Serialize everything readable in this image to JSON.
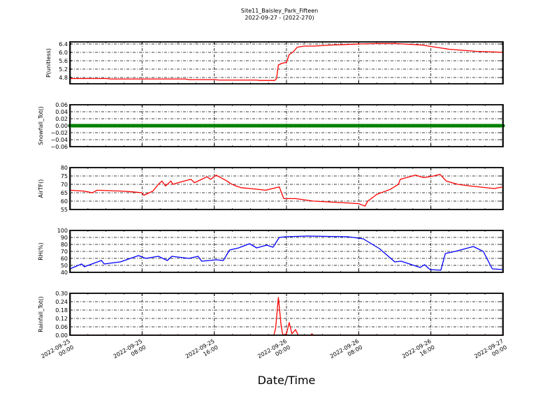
{
  "title": "Site11_Baisley_Park_Fifteen",
  "subtitle": "2022-09-27 - (2022-270)",
  "colors": {
    "red": "#ff0000",
    "green": "#008000",
    "blue": "#0000ff"
  },
  "chart_data": {
    "type": "line",
    "xlabel": "Date/Time",
    "xlim": [
      "2022-09-25 00:00",
      "2022-09-27 00:00"
    ],
    "xticks": [
      [
        "2022-09-25",
        "00:00"
      ],
      [
        "2022-09-25",
        "08:00"
      ],
      [
        "2022-09-25",
        "16:00"
      ],
      [
        "2022-09-26",
        "00:00"
      ],
      [
        "2022-09-26",
        "08:00"
      ],
      [
        "2022-09-26",
        "16:00"
      ],
      [
        "2022-09-27",
        "00:00"
      ]
    ],
    "grid": true,
    "panels": [
      {
        "ylabel": "P(unitless)",
        "ylim": [
          4.5,
          6.5
        ],
        "color": "#ff0000",
        "markers": false,
        "yticks": [
          "4.8",
          "5.2",
          "5.6",
          "6.0",
          "6.4"
        ],
        "points": [
          [
            "2022-09-25 00:00",
            4.75
          ],
          [
            "2022-09-25 04:00",
            4.75
          ],
          [
            "2022-09-25 04:30",
            4.73
          ],
          [
            "2022-09-25 12:48",
            4.73
          ],
          [
            "2022-09-25 13:12",
            4.7
          ],
          [
            "2022-09-25 16:00",
            4.7
          ],
          [
            "2022-09-25 16:30",
            4.68
          ],
          [
            "2022-09-25 20:42",
            4.68
          ],
          [
            "2022-09-25 21:00",
            4.66
          ],
          [
            "2022-09-25 22:42",
            4.66
          ],
          [
            "2022-09-25 22:54",
            4.75
          ],
          [
            "2022-09-25 23:06",
            5.4
          ],
          [
            "2022-09-25 23:30",
            5.48
          ],
          [
            "2022-09-26 00:00",
            5.52
          ],
          [
            "2022-09-26 00:18",
            5.9
          ],
          [
            "2022-09-26 00:42",
            6.0
          ],
          [
            "2022-09-26 01:12",
            6.25
          ],
          [
            "2022-09-26 02:00",
            6.3
          ],
          [
            "2022-09-26 03:00",
            6.3
          ],
          [
            "2022-09-26 05:00",
            6.35
          ],
          [
            "2022-09-26 08:00",
            6.4
          ],
          [
            "2022-09-26 10:00",
            6.42
          ],
          [
            "2022-09-26 12:00",
            6.42
          ],
          [
            "2022-09-26 13:00",
            6.4
          ],
          [
            "2022-09-26 15:00",
            6.35
          ],
          [
            "2022-09-26 16:30",
            6.25
          ],
          [
            "2022-09-26 18:00",
            6.15
          ],
          [
            "2022-09-26 19:30",
            6.1
          ],
          [
            "2022-09-26 21:00",
            6.05
          ],
          [
            "2022-09-26 23:00",
            6.02
          ],
          [
            "2022-09-27 00:00",
            6.0
          ]
        ]
      },
      {
        "ylabel": "Snowfall_Tot()",
        "ylim": [
          -0.06,
          0.06
        ],
        "color": "#008000",
        "markers": true,
        "yticks": [
          "−0.06",
          "−0.04",
          "−0.02",
          "0.00",
          "0.02",
          "0.04",
          "0.06"
        ],
        "points": [
          [
            "2022-09-25 00:00",
            0
          ],
          [
            "2022-09-25 04:00",
            0
          ],
          [
            "2022-09-25 08:00",
            0
          ],
          [
            "2022-09-25 12:00",
            0
          ],
          [
            "2022-09-25 16:00",
            0
          ],
          [
            "2022-09-25 20:00",
            0
          ],
          [
            "2022-09-26 00:00",
            0
          ],
          [
            "2022-09-26 04:00",
            0
          ],
          [
            "2022-09-26 08:00",
            0
          ],
          [
            "2022-09-26 12:00",
            0
          ],
          [
            "2022-09-26 16:00",
            0
          ],
          [
            "2022-09-26 20:00",
            0
          ],
          [
            "2022-09-27 00:00",
            0
          ]
        ]
      },
      {
        "ylabel": "AirTF()",
        "ylim": [
          55,
          80
        ],
        "color": "#ff0000",
        "markers": false,
        "yticks": [
          "55",
          "60",
          "65",
          "70",
          "75",
          "80"
        ],
        "points": [
          [
            "2022-09-25 00:00",
            66.5
          ],
          [
            "2022-09-25 01:30",
            66
          ],
          [
            "2022-09-25 02:30",
            65
          ],
          [
            "2022-09-25 03:00",
            66.5
          ],
          [
            "2022-09-25 05:42",
            66
          ],
          [
            "2022-09-25 07:00",
            65.5
          ],
          [
            "2022-09-25 08:00",
            65
          ],
          [
            "2022-09-25 08:12",
            63.5
          ],
          [
            "2022-09-25 09:12",
            66
          ],
          [
            "2022-09-25 09:48",
            70
          ],
          [
            "2022-09-25 10:12",
            72
          ],
          [
            "2022-09-25 10:36",
            69
          ],
          [
            "2022-09-25 11:12",
            72
          ],
          [
            "2022-09-25 11:24",
            70
          ],
          [
            "2022-09-25 12:00",
            71
          ],
          [
            "2022-09-25 13:24",
            73
          ],
          [
            "2022-09-25 13:48",
            71
          ],
          [
            "2022-09-25 15:12",
            74.5
          ],
          [
            "2022-09-25 15:36",
            73
          ],
          [
            "2022-09-25 16:12",
            75.5
          ],
          [
            "2022-09-25 17:24",
            72
          ],
          [
            "2022-09-25 17:48",
            70.5
          ],
          [
            "2022-09-25 18:24",
            69
          ],
          [
            "2022-09-25 19:00",
            68
          ],
          [
            "2022-09-25 20:00",
            67.5
          ],
          [
            "2022-09-25 21:42",
            66.5
          ],
          [
            "2022-09-25 23:12",
            68.5
          ],
          [
            "2022-09-25 23:42",
            61.5
          ],
          [
            "2022-09-26 01:00",
            61.5
          ],
          [
            "2022-09-26 03:00",
            60
          ],
          [
            "2022-09-26 06:24",
            59
          ],
          [
            "2022-09-26 08:00",
            58.5
          ],
          [
            "2022-09-26 08:42",
            57
          ],
          [
            "2022-09-26 09:00",
            60
          ],
          [
            "2022-09-26 10:00",
            64
          ],
          [
            "2022-09-26 11:30",
            67
          ],
          [
            "2022-09-26 12:24",
            70
          ],
          [
            "2022-09-26 12:36",
            73
          ],
          [
            "2022-09-26 14:18",
            75.5
          ],
          [
            "2022-09-26 15:12",
            74
          ],
          [
            "2022-09-26 16:18",
            75
          ],
          [
            "2022-09-26 17:00",
            76
          ],
          [
            "2022-09-26 17:42",
            72
          ],
          [
            "2022-09-26 19:00",
            70
          ],
          [
            "2022-09-26 20:24",
            69
          ],
          [
            "2022-09-26 23:00",
            67.5
          ],
          [
            "2022-09-27 00:00",
            68.5
          ]
        ]
      },
      {
        "ylabel": "RH(%)",
        "ylim": [
          40,
          100
        ],
        "color": "#0000ff",
        "markers": false,
        "yticks": [
          "40",
          "50",
          "60",
          "70",
          "80",
          "90",
          "100"
        ],
        "points": [
          [
            "2022-09-25 00:00",
            45
          ],
          [
            "2022-09-25 01:18",
            52
          ],
          [
            "2022-09-25 01:36",
            48
          ],
          [
            "2022-09-25 03:30",
            57
          ],
          [
            "2022-09-25 03:48",
            52
          ],
          [
            "2022-09-25 05:36",
            55
          ],
          [
            "2022-09-25 07:36",
            64
          ],
          [
            "2022-09-25 08:24",
            60
          ],
          [
            "2022-09-25 09:48",
            63
          ],
          [
            "2022-09-25 10:48",
            57
          ],
          [
            "2022-09-25 11:18",
            63
          ],
          [
            "2022-09-25 13:12",
            60
          ],
          [
            "2022-09-25 14:12",
            63
          ],
          [
            "2022-09-25 14:36",
            56
          ],
          [
            "2022-09-25 15:30",
            57
          ],
          [
            "2022-09-25 16:12",
            58
          ],
          [
            "2022-09-25 17:00",
            57
          ],
          [
            "2022-09-25 17:42",
            72
          ],
          [
            "2022-09-25 18:42",
            75
          ],
          [
            "2022-09-25 19:54",
            81
          ],
          [
            "2022-09-25 20:42",
            75
          ],
          [
            "2022-09-25 21:48",
            79
          ],
          [
            "2022-09-25 22:30",
            76
          ],
          [
            "2022-09-25 23:12",
            90
          ],
          [
            "2022-09-25 23:54",
            91
          ],
          [
            "2022-09-26 02:18",
            92
          ],
          [
            "2022-09-26 06:48",
            91
          ],
          [
            "2022-09-26 08:30",
            88
          ],
          [
            "2022-09-26 10:18",
            74
          ],
          [
            "2022-09-26 12:00",
            55
          ],
          [
            "2022-09-26 12:42",
            56
          ],
          [
            "2022-09-26 14:48",
            47
          ],
          [
            "2022-09-26 15:18",
            51
          ],
          [
            "2022-09-26 15:54",
            44
          ],
          [
            "2022-09-26 17:06",
            43
          ],
          [
            "2022-09-26 17:36",
            67
          ],
          [
            "2022-09-26 18:42",
            70
          ],
          [
            "2022-09-26 20:42",
            77
          ],
          [
            "2022-09-26 21:48",
            70
          ],
          [
            "2022-09-26 22:48",
            45
          ],
          [
            "2022-09-27 00:00",
            44
          ]
        ]
      },
      {
        "ylabel": "Rainfall_Tot()",
        "ylim": [
          0,
          0.3
        ],
        "color": "#ff0000",
        "markers": false,
        "yticks": [
          "0.00",
          "0.06",
          "0.12",
          "0.18",
          "0.24",
          "0.30"
        ],
        "points": [
          [
            "2022-09-25 00:00",
            0
          ],
          [
            "2022-09-25 22:36",
            0
          ],
          [
            "2022-09-25 22:48",
            0.05
          ],
          [
            "2022-09-25 23:06",
            0.27
          ],
          [
            "2022-09-25 23:24",
            0.07
          ],
          [
            "2022-09-25 23:36",
            0
          ],
          [
            "2022-09-26 00:00",
            0.01
          ],
          [
            "2022-09-26 00:18",
            0.09
          ],
          [
            "2022-09-26 00:36",
            0.01
          ],
          [
            "2022-09-26 01:00",
            0.04
          ],
          [
            "2022-09-26 01:18",
            0
          ],
          [
            "2022-09-26 02:42",
            0
          ],
          [
            "2022-09-26 02:48",
            0.01
          ],
          [
            "2022-09-26 03:00",
            0
          ],
          [
            "2022-09-27 00:00",
            0
          ]
        ]
      }
    ]
  }
}
